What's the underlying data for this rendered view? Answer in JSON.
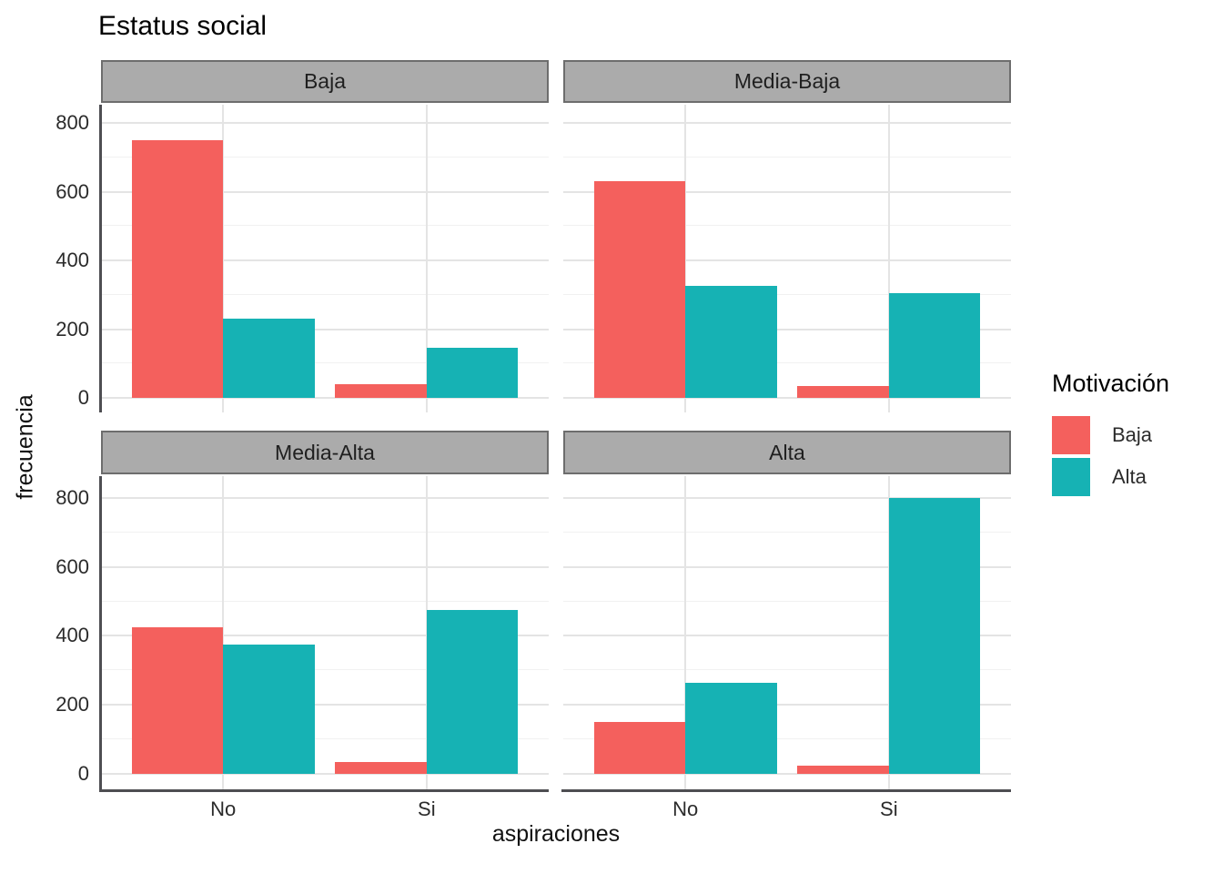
{
  "title": "Estatus social",
  "xlabel": "aspiraciones",
  "ylabel": "frecuencia",
  "legend": {
    "title": "Motivación",
    "items": [
      {
        "label": "Baja",
        "color": "#F4605D"
      },
      {
        "label": "Alta",
        "color": "#16B2B4"
      }
    ]
  },
  "chart_data": {
    "type": "bar",
    "grouping": "dodge",
    "title": "Estatus social",
    "xlabel": "aspiraciones",
    "ylabel": "frecuencia",
    "legend_title": "Motivación",
    "legend_position": "right",
    "grid": true,
    "categories": [
      "No",
      "Si"
    ],
    "y_ticks": [
      0,
      200,
      400,
      600,
      800
    ],
    "ylim": [
      0,
      850
    ],
    "series_colors": {
      "Baja": "#F4605D",
      "Alta": "#16B2B4"
    },
    "facets": [
      {
        "label": "Baja",
        "series": [
          {
            "name": "Baja",
            "values": [
              750,
              40
            ]
          },
          {
            "name": "Alta",
            "values": [
              230,
              145
            ]
          }
        ]
      },
      {
        "label": "Media-Baja",
        "series": [
          {
            "name": "Baja",
            "values": [
              630,
              35
            ]
          },
          {
            "name": "Alta",
            "values": [
              325,
              305
            ]
          }
        ]
      },
      {
        "label": "Media-Alta",
        "series": [
          {
            "name": "Baja",
            "values": [
              425,
              35
            ]
          },
          {
            "name": "Alta",
            "values": [
              375,
              475
            ]
          }
        ]
      },
      {
        "label": "Alta",
        "series": [
          {
            "name": "Baja",
            "values": [
              150,
              25
            ]
          },
          {
            "name": "Alta",
            "values": [
              265,
              800
            ]
          }
        ]
      }
    ]
  }
}
